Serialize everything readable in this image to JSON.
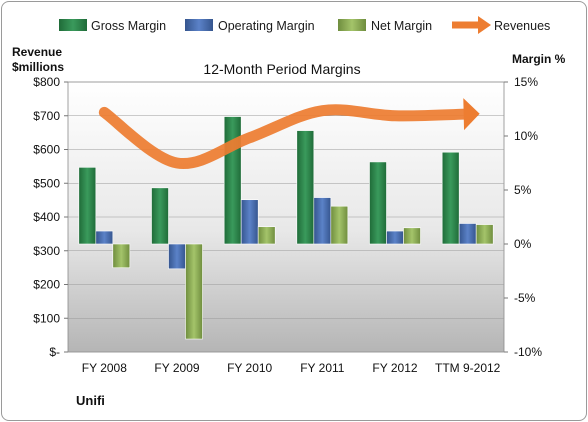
{
  "chart_data": {
    "type": "bar",
    "title": "12-Month Period Margins",
    "company": "Unifi",
    "y_left_label_line1": "Revenue",
    "y_left_label_line2": "$millions",
    "y_right_label": "Margin %",
    "categories": [
      "FY 2008",
      "FY 2009",
      "FY 2010",
      "FY 2011",
      "FY 2012",
      "TTM 9-2012"
    ],
    "y_left_ticks": [
      "$-",
      "$100",
      "$200",
      "$300",
      "$400",
      "$500",
      "$600",
      "$700",
      "$800"
    ],
    "y_right_ticks": [
      "-10%",
      "-5%",
      "0%",
      "5%",
      "10%",
      "15%"
    ],
    "y_left_range": [
      0,
      800
    ],
    "y_right_range": [
      -10,
      15
    ],
    "legend_position": "top",
    "series": [
      {
        "name": "Gross Margin",
        "axis": "right",
        "kind": "bar",
        "color": "#2e8b4e",
        "values": [
          7.1,
          5.2,
          11.8,
          10.5,
          7.6,
          8.5
        ]
      },
      {
        "name": "Operating Margin",
        "axis": "right",
        "kind": "bar",
        "color": "#4a6fb5",
        "values": [
          1.2,
          -2.3,
          4.1,
          4.3,
          1.2,
          1.9
        ]
      },
      {
        "name": "Net Margin",
        "axis": "right",
        "kind": "bar",
        "color": "#8fb05a",
        "values": [
          -2.2,
          -8.8,
          1.6,
          3.5,
          1.5,
          1.8
        ]
      },
      {
        "name": "Revenues",
        "axis": "left",
        "kind": "line",
        "color": "#ed7d31",
        "values": [
          710,
          560,
          635,
          715,
          700,
          705
        ]
      }
    ]
  }
}
